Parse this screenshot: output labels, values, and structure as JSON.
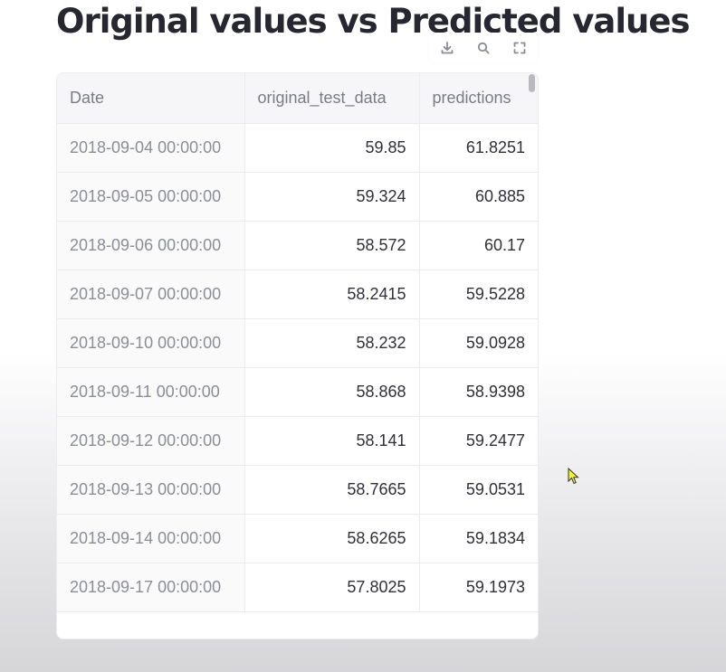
{
  "page_title": "Original values vs Predicted values",
  "toolbar": {
    "download_icon": "download-icon",
    "search_icon": "search-icon",
    "fullscreen_icon": "fullscreen-icon"
  },
  "table": {
    "columns": [
      "Date",
      "original_test_data",
      "predictions"
    ],
    "rows": [
      [
        "2018-09-04 00:00:00",
        "59.85",
        "61.8251"
      ],
      [
        "2018-09-05 00:00:00",
        "59.324",
        "60.885"
      ],
      [
        "2018-09-06 00:00:00",
        "58.572",
        "60.17"
      ],
      [
        "2018-09-07 00:00:00",
        "58.2415",
        "59.5228"
      ],
      [
        "2018-09-10 00:00:00",
        "58.232",
        "59.0928"
      ],
      [
        "2018-09-11 00:00:00",
        "58.868",
        "58.9398"
      ],
      [
        "2018-09-12 00:00:00",
        "58.141",
        "59.2477"
      ],
      [
        "2018-09-13 00:00:00",
        "58.7665",
        "59.0531"
      ],
      [
        "2018-09-14 00:00:00",
        "58.6265",
        "59.1834"
      ],
      [
        "2018-09-17 00:00:00",
        "57.8025",
        "59.1973"
      ]
    ]
  },
  "colors": {
    "title": "#262730",
    "header_bg": "#f6f6f8",
    "grid_line": "#ececef",
    "cursor_fill": "#f2f237"
  }
}
